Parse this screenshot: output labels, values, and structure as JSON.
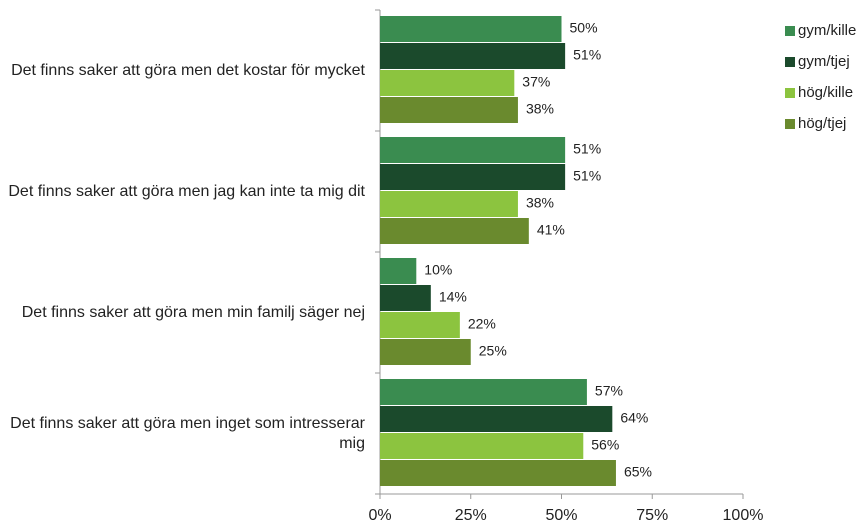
{
  "chart_data": {
    "type": "bar",
    "orientation": "horizontal",
    "categories": [
      "Det finns saker att göra men det kostar för mycket",
      "Det finns saker att göra men jag kan inte ta mig dit",
      "Det finns saker att göra men min familj säger nej",
      "Det finns saker att göra men inget som intresserar mig"
    ],
    "series": [
      {
        "name": "gym/kille",
        "color": "#3a8c50",
        "values": [
          50,
          51,
          10,
          57
        ],
        "value_labels": [
          "50%",
          "51%",
          "10%",
          "57%"
        ]
      },
      {
        "name": "gym/tjej",
        "color": "#1b4a2c",
        "values": [
          51,
          51,
          14,
          64
        ],
        "value_labels": [
          "51%",
          "51%",
          "14%",
          "64%"
        ]
      },
      {
        "name": "hög/kille",
        "color": "#8cc43f",
        "values": [
          37,
          38,
          22,
          56
        ],
        "value_labels": [
          "37%",
          "38%",
          "22%",
          "56%"
        ]
      },
      {
        "name": "hög/tjej",
        "color": "#6a8a2e",
        "values": [
          38,
          41,
          25,
          65
        ],
        "value_labels": [
          "38%",
          "41%",
          "25%",
          "65%"
        ]
      }
    ],
    "xlim": [
      0,
      100
    ],
    "xticks": [
      {
        "value": 0,
        "label": "0%"
      },
      {
        "value": 25,
        "label": "25%"
      },
      {
        "value": 50,
        "label": "50%"
      },
      {
        "value": 75,
        "label": "75%"
      },
      {
        "value": 100,
        "label": "100%"
      }
    ],
    "grid": false,
    "legend": "right"
  }
}
